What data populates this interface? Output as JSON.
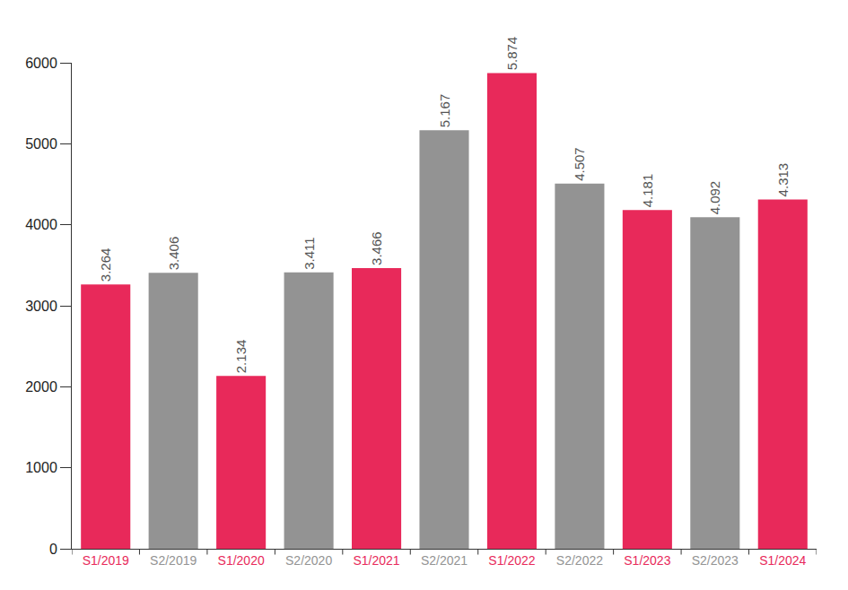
{
  "chart_data": {
    "type": "bar",
    "categories": [
      "S1/2019",
      "S2/2019",
      "S1/2020",
      "S2/2020",
      "S1/2021",
      "S2/2021",
      "S1/2022",
      "S2/2022",
      "S1/2023",
      "S2/2023",
      "S1/2024"
    ],
    "values": [
      3264,
      3406,
      2134,
      3411,
      3466,
      5167,
      5874,
      4507,
      4181,
      4092,
      4313
    ],
    "value_labels": [
      "3.264",
      "3.406",
      "2.134",
      "3.411",
      "3.466",
      "5.167",
      "5.874",
      "4.507",
      "4.181",
      "4.092",
      "4.313"
    ],
    "colors": [
      "#e8295a",
      "#939393",
      "#e8295a",
      "#939393",
      "#e8295a",
      "#939393",
      "#e8295a",
      "#939393",
      "#e8295a",
      "#939393",
      "#e8295a"
    ],
    "data_labels": true,
    "ylim": [
      0,
      6000
    ],
    "yticks": [
      0,
      1000,
      2000,
      3000,
      4000,
      5000,
      6000
    ],
    "grid": false
  }
}
